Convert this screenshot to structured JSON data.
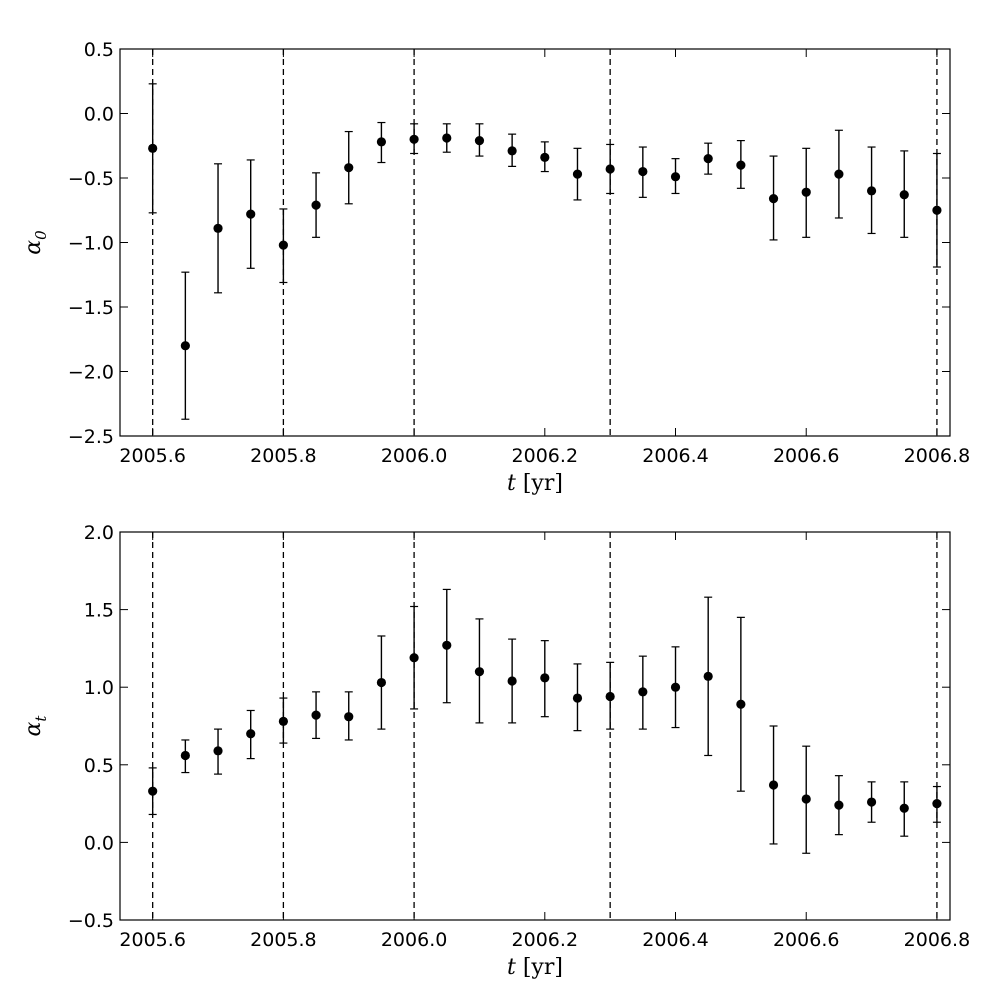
{
  "chart_data": [
    {
      "type": "scatter",
      "xlabel": "t [yr]",
      "ylabel": "α0",
      "xlim": [
        2005.55,
        2006.82
      ],
      "ylim": [
        -2.5,
        0.5
      ],
      "x_ticks": [
        2005.6,
        2005.8,
        2006.0,
        2006.2,
        2006.4,
        2006.6,
        2006.8
      ],
      "x_tick_labels": [
        "2005.6",
        "2005.8",
        "2006.0",
        "2006.2",
        "2006.4",
        "2006.6",
        "2006.8"
      ],
      "y_ticks": [
        0.5,
        0.0,
        -0.5,
        -1.0,
        -1.5,
        -2.0,
        -2.5
      ],
      "y_tick_labels": [
        "0.5",
        "0.0",
        "−0.5",
        "−1.0",
        "−1.5",
        "−2.0",
        "−2.5"
      ],
      "vlines": [
        2005.6,
        2005.8,
        2006.0,
        2006.3,
        2006.8
      ],
      "grid": false,
      "points": [
        {
          "x": 2005.6,
          "y": -0.27,
          "lo": -0.77,
          "hi": 0.23
        },
        {
          "x": 2005.65,
          "y": -1.8,
          "lo": -2.37,
          "hi": -1.23
        },
        {
          "x": 2005.7,
          "y": -0.89,
          "lo": -1.39,
          "hi": -0.39
        },
        {
          "x": 2005.75,
          "y": -0.78,
          "lo": -1.2,
          "hi": -0.36
        },
        {
          "x": 2005.8,
          "y": -1.02,
          "lo": -1.31,
          "hi": -0.74
        },
        {
          "x": 2005.85,
          "y": -0.71,
          "lo": -0.96,
          "hi": -0.46
        },
        {
          "x": 2005.9,
          "y": -0.42,
          "lo": -0.7,
          "hi": -0.14
        },
        {
          "x": 2005.95,
          "y": -0.22,
          "lo": -0.38,
          "hi": -0.07
        },
        {
          "x": 2006.0,
          "y": -0.2,
          "lo": -0.31,
          "hi": -0.08
        },
        {
          "x": 2006.05,
          "y": -0.19,
          "lo": -0.3,
          "hi": -0.08
        },
        {
          "x": 2006.1,
          "y": -0.21,
          "lo": -0.33,
          "hi": -0.08
        },
        {
          "x": 2006.15,
          "y": -0.29,
          "lo": -0.41,
          "hi": -0.16
        },
        {
          "x": 2006.2,
          "y": -0.34,
          "lo": -0.45,
          "hi": -0.22
        },
        {
          "x": 2006.25,
          "y": -0.47,
          "lo": -0.67,
          "hi": -0.27
        },
        {
          "x": 2006.3,
          "y": -0.43,
          "lo": -0.62,
          "hi": -0.24
        },
        {
          "x": 2006.35,
          "y": -0.45,
          "lo": -0.65,
          "hi": -0.26
        },
        {
          "x": 2006.4,
          "y": -0.49,
          "lo": -0.62,
          "hi": -0.35
        },
        {
          "x": 2006.45,
          "y": -0.35,
          "lo": -0.47,
          "hi": -0.23
        },
        {
          "x": 2006.5,
          "y": -0.4,
          "lo": -0.58,
          "hi": -0.21
        },
        {
          "x": 2006.55,
          "y": -0.66,
          "lo": -0.98,
          "hi": -0.33
        },
        {
          "x": 2006.6,
          "y": -0.61,
          "lo": -0.96,
          "hi": -0.27
        },
        {
          "x": 2006.65,
          "y": -0.47,
          "lo": -0.81,
          "hi": -0.13
        },
        {
          "x": 2006.7,
          "y": -0.6,
          "lo": -0.93,
          "hi": -0.26
        },
        {
          "x": 2006.75,
          "y": -0.63,
          "lo": -0.96,
          "hi": -0.29
        },
        {
          "x": 2006.8,
          "y": -0.75,
          "lo": -1.19,
          "hi": -0.31
        }
      ]
    },
    {
      "type": "scatter",
      "xlabel": "t [yr]",
      "ylabel": "αt",
      "xlim": [
        2005.55,
        2006.82
      ],
      "ylim": [
        -0.5,
        2.0
      ],
      "x_ticks": [
        2005.6,
        2005.8,
        2006.0,
        2006.2,
        2006.4,
        2006.6,
        2006.8
      ],
      "x_tick_labels": [
        "2005.6",
        "2005.8",
        "2006.0",
        "2006.2",
        "2006.4",
        "2006.6",
        "2006.8"
      ],
      "y_ticks": [
        2.0,
        1.5,
        1.0,
        0.5,
        0.0,
        -0.5
      ],
      "y_tick_labels": [
        "2.0",
        "1.5",
        "1.0",
        "0.5",
        "0.0",
        "−0.5"
      ],
      "vlines": [
        2005.6,
        2005.8,
        2006.0,
        2006.3,
        2006.8
      ],
      "grid": false,
      "points": [
        {
          "x": 2005.6,
          "y": 0.33,
          "lo": 0.18,
          "hi": 0.48
        },
        {
          "x": 2005.65,
          "y": 0.56,
          "lo": 0.45,
          "hi": 0.66
        },
        {
          "x": 2005.7,
          "y": 0.59,
          "lo": 0.44,
          "hi": 0.73
        },
        {
          "x": 2005.75,
          "y": 0.7,
          "lo": 0.54,
          "hi": 0.85
        },
        {
          "x": 2005.8,
          "y": 0.78,
          "lo": 0.64,
          "hi": 0.93
        },
        {
          "x": 2005.85,
          "y": 0.82,
          "lo": 0.67,
          "hi": 0.97
        },
        {
          "x": 2005.9,
          "y": 0.81,
          "lo": 0.66,
          "hi": 0.97
        },
        {
          "x": 2005.95,
          "y": 1.03,
          "lo": 0.73,
          "hi": 1.33
        },
        {
          "x": 2006.0,
          "y": 1.19,
          "lo": 0.86,
          "hi": 1.52
        },
        {
          "x": 2006.05,
          "y": 1.27,
          "lo": 0.9,
          "hi": 1.63
        },
        {
          "x": 2006.1,
          "y": 1.1,
          "lo": 0.77,
          "hi": 1.44
        },
        {
          "x": 2006.15,
          "y": 1.04,
          "lo": 0.77,
          "hi": 1.31
        },
        {
          "x": 2006.2,
          "y": 1.06,
          "lo": 0.81,
          "hi": 1.3
        },
        {
          "x": 2006.25,
          "y": 0.93,
          "lo": 0.72,
          "hi": 1.15
        },
        {
          "x": 2006.3,
          "y": 0.94,
          "lo": 0.73,
          "hi": 1.16
        },
        {
          "x": 2006.35,
          "y": 0.97,
          "lo": 0.73,
          "hi": 1.2
        },
        {
          "x": 2006.4,
          "y": 1.0,
          "lo": 0.74,
          "hi": 1.26
        },
        {
          "x": 2006.45,
          "y": 1.07,
          "lo": 0.56,
          "hi": 1.58
        },
        {
          "x": 2006.5,
          "y": 0.89,
          "lo": 0.33,
          "hi": 1.45
        },
        {
          "x": 2006.55,
          "y": 0.37,
          "lo": -0.01,
          "hi": 0.75
        },
        {
          "x": 2006.6,
          "y": 0.28,
          "lo": -0.07,
          "hi": 0.62
        },
        {
          "x": 2006.65,
          "y": 0.24,
          "lo": 0.05,
          "hi": 0.43
        },
        {
          "x": 2006.7,
          "y": 0.26,
          "lo": 0.13,
          "hi": 0.39
        },
        {
          "x": 2006.75,
          "y": 0.22,
          "lo": 0.04,
          "hi": 0.39
        },
        {
          "x": 2006.8,
          "y": 0.25,
          "lo": 0.13,
          "hi": 0.36
        }
      ]
    }
  ]
}
